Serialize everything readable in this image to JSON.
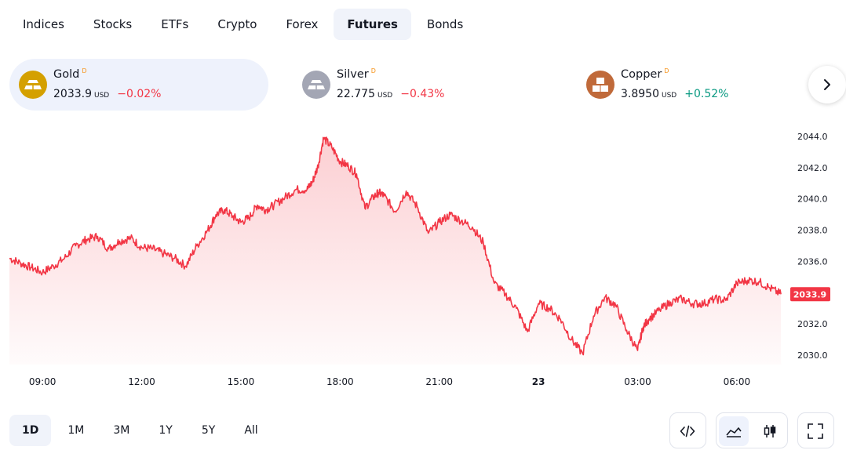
{
  "tabs": [
    {
      "label": "Indices",
      "active": false
    },
    {
      "label": "Stocks",
      "active": false
    },
    {
      "label": "ETFs",
      "active": false
    },
    {
      "label": "Crypto",
      "active": false
    },
    {
      "label": "Forex",
      "active": false
    },
    {
      "label": "Futures",
      "active": true
    },
    {
      "label": "Bonds",
      "active": false
    }
  ],
  "tickers": [
    {
      "name": "Gold",
      "flag": "D",
      "price": "2033.9",
      "unit": "USD",
      "change": "−0.02%",
      "direction": "down",
      "icon": "gold-bars-icon",
      "color": "#d4a000",
      "active": true
    },
    {
      "name": "Silver",
      "flag": "D",
      "price": "22.775",
      "unit": "USD",
      "change": "−0.43%",
      "direction": "down",
      "icon": "silver-bars-icon",
      "color": "#a3a6b4",
      "active": false
    },
    {
      "name": "Copper",
      "flag": "D",
      "price": "3.8950",
      "unit": "USD",
      "change": "+0.52%",
      "direction": "up",
      "icon": "copper-bars-icon",
      "color": "#c06a3a",
      "active": false
    }
  ],
  "ranges": [
    {
      "label": "1D",
      "active": true
    },
    {
      "label": "1M",
      "active": false
    },
    {
      "label": "3M",
      "active": false
    },
    {
      "label": "1Y",
      "active": false
    },
    {
      "label": "5Y",
      "active": false
    },
    {
      "label": "All",
      "active": false
    }
  ],
  "colors": {
    "line": "#f23645",
    "negative": "#f23645",
    "positive": "#089981",
    "active_bg": "#f0f3fa"
  },
  "chart_data": {
    "type": "area",
    "x_ticks": [
      "09:00",
      "12:00",
      "15:00",
      "18:00",
      "21:00",
      "23",
      "03:00",
      "06:00"
    ],
    "y_ticks": [
      "2030.0",
      "2032.0",
      "2034.0",
      "2036.0",
      "2038.0",
      "2040.0",
      "2042.0",
      "2044.0"
    ],
    "ylim": [
      2029.4,
      2045.2
    ],
    "xlim_hours": [
      8.0,
      31.45
    ],
    "last_value": "2033.9",
    "series": [
      {
        "x": [
          "08:00",
          "08:20",
          "08:40",
          "09:00",
          "09:20",
          "09:40",
          "10:00",
          "10:20",
          "10:40",
          "11:00",
          "11:20",
          "11:40",
          "12:00",
          "12:20",
          "12:40",
          "13:00",
          "13:20",
          "13:40",
          "14:00",
          "14:15",
          "14:30",
          "14:45",
          "15:00",
          "15:15",
          "15:30",
          "15:45",
          "16:00",
          "16:20",
          "16:40",
          "17:00",
          "17:10",
          "17:20",
          "17:30",
          "17:45",
          "18:00",
          "18:15",
          "18:30",
          "18:45",
          "19:00",
          "19:10",
          "19:20",
          "19:40",
          "20:00",
          "20:20",
          "20:40",
          "21:00",
          "21:20",
          "21:40",
          "22:00",
          "22:20",
          "22:40",
          "23:00",
          "23:20",
          "23:40",
          "00:00",
          "00:20",
          "00:40",
          "01:00",
          "01:20",
          "01:40",
          "02:00",
          "02:20",
          "02:40",
          "03:00",
          "03:10",
          "03:20",
          "03:40",
          "04:00",
          "04:20",
          "04:40",
          "05:00",
          "05:20",
          "05:40",
          "06:00",
          "06:20",
          "06:40",
          "07:00",
          "07:20"
        ],
        "y": [
          2036.2,
          2035.9,
          2035.6,
          2035.3,
          2035.7,
          2036.2,
          2037.0,
          2037.4,
          2037.6,
          2036.8,
          2037.3,
          2037.5,
          2036.9,
          2036.8,
          2036.5,
          2036.2,
          2035.7,
          2037.0,
          2038.0,
          2039.0,
          2039.3,
          2038.9,
          2038.5,
          2038.8,
          2039.6,
          2039.3,
          2039.6,
          2040.1,
          2040.6,
          2040.6,
          2041.1,
          2042.1,
          2043.9,
          2043.3,
          2042.4,
          2042.1,
          2041.6,
          2039.4,
          2040.1,
          2040.4,
          2040.2,
          2039.2,
          2040.5,
          2039.5,
          2037.8,
          2038.5,
          2039.0,
          2038.6,
          2038.2,
          2037.2,
          2034.6,
          2033.9,
          2033.0,
          2031.5,
          2033.3,
          2033.0,
          2032.3,
          2031.0,
          2030.1,
          2032.5,
          2033.7,
          2033.2,
          2031.6,
          2030.3,
          2031.8,
          2032.3,
          2032.9,
          2033.4,
          2033.6,
          2033.3,
          2033.3,
          2033.6,
          2033.5,
          2034.6,
          2034.8,
          2034.7,
          2034.3,
          2033.9
        ]
      }
    ]
  }
}
